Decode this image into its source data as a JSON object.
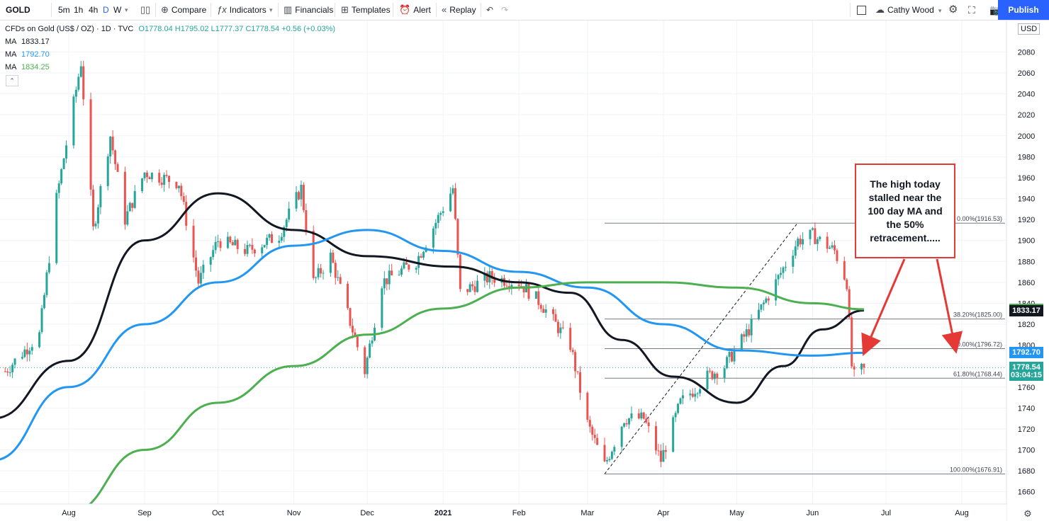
{
  "toolbar": {
    "symbol": "GOLD",
    "timeframes": [
      "5m",
      "1h",
      "4h",
      "D",
      "W"
    ],
    "compare": "Compare",
    "indicators": "Indicators",
    "financials": "Financials",
    "templates": "Templates",
    "alert": "Alert",
    "replay": "Replay",
    "user": "Cathy Wood",
    "publish": "Publish"
  },
  "legend": {
    "title": "CFDs on Gold (US$ / OZ) · 1D · TVC",
    "ohlc": "O1778.04 H1795.02 L1777.37 C1778.54 +0.56 (+0.03%)",
    "ma": [
      {
        "label": "MA",
        "value": "1833.17",
        "color": "#131722"
      },
      {
        "label": "MA",
        "value": "1792.70",
        "color": "#2196f3"
      },
      {
        "label": "MA",
        "value": "1834.25",
        "color": "#4caf50"
      }
    ]
  },
  "annotation": "The high today stalled near the 100 day MA and the 50% retracement.....",
  "currency": "USD",
  "chart_data": {
    "type": "candlestick",
    "symbol": "GOLD",
    "ylim": [
      1650,
      2100
    ],
    "yticks": [
      1660,
      1680,
      1700,
      1720,
      1740,
      1760,
      1780,
      1800,
      1820,
      1840,
      1860,
      1880,
      1900,
      1920,
      1940,
      1960,
      1980,
      2000,
      2020,
      2040,
      2060,
      2080
    ],
    "xticks": [
      {
        "label": "Aug",
        "date": "2020-08-01"
      },
      {
        "label": "Sep",
        "date": "2020-09-01"
      },
      {
        "label": "Oct",
        "date": "2020-10-01"
      },
      {
        "label": "Nov",
        "date": "2020-11-01"
      },
      {
        "label": "Dec",
        "date": "2020-12-01"
      },
      {
        "label": "2021",
        "date": "2021-01-01"
      },
      {
        "label": "Feb",
        "date": "2021-02-01"
      },
      {
        "label": "Mar",
        "date": "2021-03-01"
      },
      {
        "label": "Apr",
        "date": "2021-04-01"
      },
      {
        "label": "May",
        "date": "2021-05-01"
      },
      {
        "label": "Jun",
        "date": "2021-06-01"
      },
      {
        "label": "Jul",
        "date": "2021-07-01"
      },
      {
        "label": "Aug",
        "date": "2021-08-01"
      }
    ],
    "price_path": [
      [
        "2020-07-06",
        1775
      ],
      [
        "2020-07-20",
        1810
      ],
      [
        "2020-07-27",
        1940
      ],
      [
        "2020-08-06",
        2070
      ],
      [
        "2020-08-11",
        1910
      ],
      [
        "2020-08-18",
        2000
      ],
      [
        "2020-08-24",
        1920
      ],
      [
        "2020-09-01",
        1965
      ],
      [
        "2020-09-15",
        1955
      ],
      [
        "2020-09-23",
        1860
      ],
      [
        "2020-10-01",
        1900
      ],
      [
        "2020-10-13",
        1890
      ],
      [
        "2020-10-26",
        1905
      ],
      [
        "2020-11-04",
        1950
      ],
      [
        "2020-11-09",
        1860
      ],
      [
        "2020-11-16",
        1885
      ],
      [
        "2020-11-30",
        1775
      ],
      [
        "2020-12-07",
        1860
      ],
      [
        "2020-12-21",
        1880
      ],
      [
        "2021-01-05",
        1950
      ],
      [
        "2021-01-08",
        1850
      ],
      [
        "2021-01-20",
        1865
      ],
      [
        "2021-02-01",
        1860
      ],
      [
        "2021-02-10",
        1840
      ],
      [
        "2021-02-22",
        1800
      ],
      [
        "2021-03-01",
        1725
      ],
      [
        "2021-03-08",
        1685
      ],
      [
        "2021-03-16",
        1730
      ],
      [
        "2021-03-24",
        1730
      ],
      [
        "2021-03-31",
        1690
      ],
      [
        "2021-04-08",
        1745
      ],
      [
        "2021-04-19",
        1770
      ],
      [
        "2021-04-26",
        1780
      ],
      [
        "2021-05-06",
        1815
      ],
      [
        "2021-05-17",
        1860
      ],
      [
        "2021-05-26",
        1900
      ],
      [
        "2021-06-01",
        1905
      ],
      [
        "2021-06-10",
        1890
      ],
      [
        "2021-06-15",
        1860
      ],
      [
        "2021-06-17",
        1780
      ],
      [
        "2021-06-18",
        1770
      ],
      [
        "2021-06-22",
        1778.54
      ]
    ],
    "moving_averages": [
      {
        "name": "MA",
        "value": 1833.17,
        "color": "#131722",
        "points": [
          [
            "2020-07-01",
            1730
          ],
          [
            "2020-08-01",
            1785
          ],
          [
            "2020-09-01",
            1900
          ],
          [
            "2020-10-01",
            1945
          ],
          [
            "2020-11-01",
            1910
          ],
          [
            "2020-12-01",
            1885
          ],
          [
            "2021-01-05",
            1875
          ],
          [
            "2021-02-01",
            1860
          ],
          [
            "2021-02-22",
            1850
          ],
          [
            "2021-03-15",
            1805
          ],
          [
            "2021-04-05",
            1770
          ],
          [
            "2021-05-01",
            1745
          ],
          [
            "2021-05-20",
            1780
          ],
          [
            "2021-06-05",
            1815
          ],
          [
            "2021-06-22",
            1833.17
          ]
        ]
      },
      {
        "name": "MA",
        "value": 1792.7,
        "color": "#2196f3",
        "points": [
          [
            "2020-07-01",
            1690
          ],
          [
            "2020-08-01",
            1760
          ],
          [
            "2020-09-01",
            1820
          ],
          [
            "2020-10-01",
            1860
          ],
          [
            "2020-11-01",
            1895
          ],
          [
            "2020-12-01",
            1910
          ],
          [
            "2021-01-01",
            1890
          ],
          [
            "2021-02-01",
            1870
          ],
          [
            "2021-03-01",
            1855
          ],
          [
            "2021-04-01",
            1820
          ],
          [
            "2021-05-01",
            1795
          ],
          [
            "2021-06-01",
            1790
          ],
          [
            "2021-06-22",
            1792.7
          ]
        ]
      },
      {
        "name": "MA",
        "value": 1834.25,
        "color": "#4caf50",
        "points": [
          [
            "2020-08-01",
            1640
          ],
          [
            "2020-09-01",
            1700
          ],
          [
            "2020-10-01",
            1745
          ],
          [
            "2020-11-01",
            1780
          ],
          [
            "2020-12-01",
            1810
          ],
          [
            "2021-01-01",
            1835
          ],
          [
            "2021-02-01",
            1855
          ],
          [
            "2021-03-01",
            1860
          ],
          [
            "2021-04-01",
            1860
          ],
          [
            "2021-05-01",
            1855
          ],
          [
            "2021-06-01",
            1840
          ],
          [
            "2021-06-22",
            1834.25
          ]
        ]
      }
    ],
    "fibonacci": [
      {
        "label": "0.00%(1916.53)",
        "price": 1916.53
      },
      {
        "label": "38.20%(1825.00)",
        "price": 1825.0
      },
      {
        "label": "50.00%(1796.72)",
        "price": 1796.72
      },
      {
        "label": "61.80%(1768.44)",
        "price": 1768.44
      },
      {
        "label": "100.00%(1676.91)",
        "price": 1676.91
      }
    ],
    "trendline": [
      [
        "2021-03-08",
        1677
      ],
      [
        "2021-05-26",
        1917
      ]
    ],
    "price_labels": [
      {
        "text": "1834.25",
        "price": 1834.25,
        "color": "#4caf50"
      },
      {
        "text": "1833.17",
        "price": 1833.17,
        "color": "#131722"
      },
      {
        "text": "1792.70",
        "price": 1792.7,
        "color": "#2196f3"
      },
      {
        "text": "1778.54",
        "price": 1778.54,
        "color": "#26a69a"
      },
      {
        "text": "03:04:15",
        "price": 1771.0,
        "color": "#26a69a"
      }
    ],
    "last_price": 1778.54
  }
}
